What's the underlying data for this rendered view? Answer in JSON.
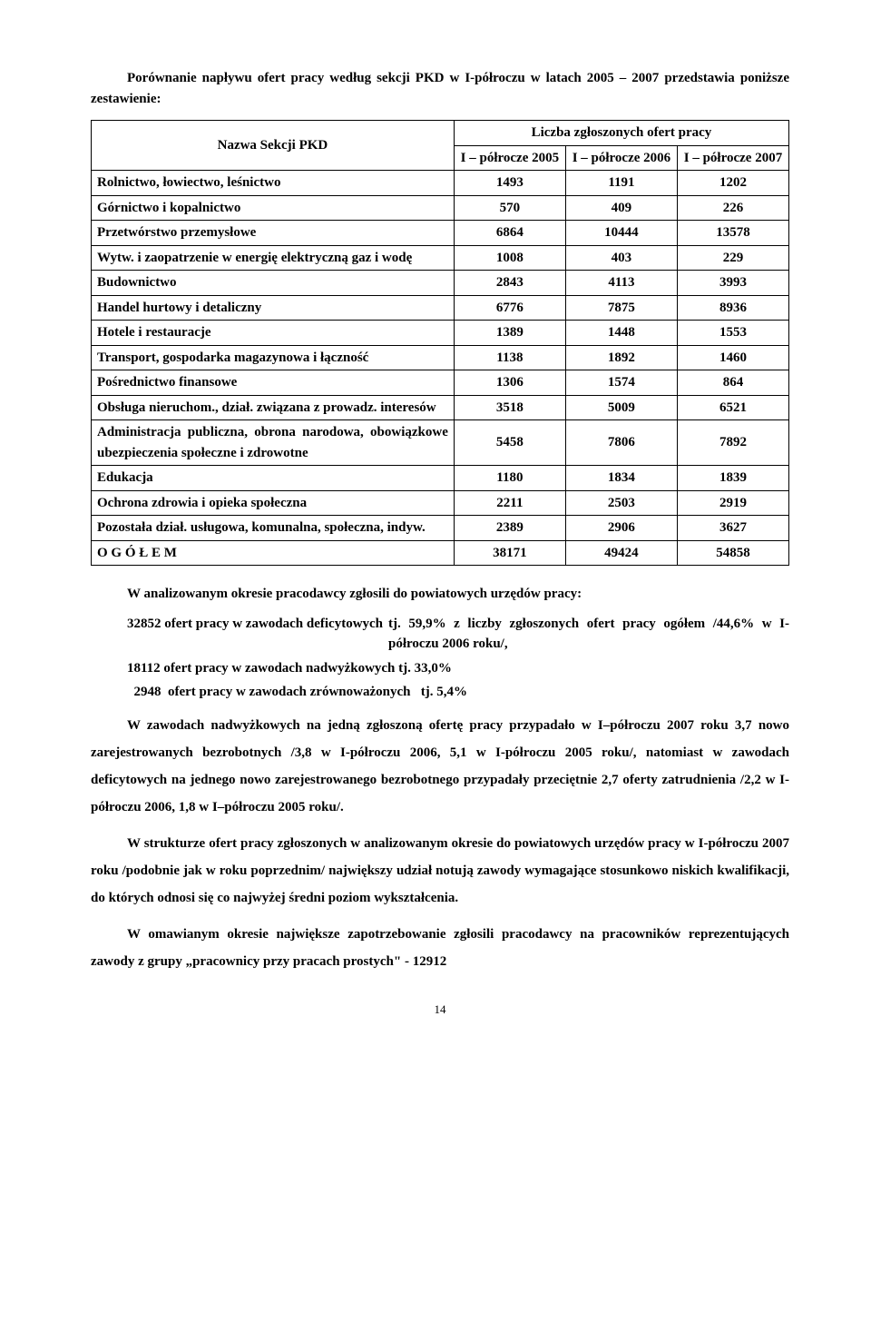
{
  "intro": "Porównanie napływu ofert pracy według sekcji PKD w I-półroczu w latach 2005 – 2007 przedstawia poniższe zestawienie:",
  "table": {
    "col_name_header": "Nazwa Sekcji PKD",
    "super_header": "Liczba zgłoszonych ofert pracy",
    "col_headers": [
      "I – półrocze 2005",
      "I – półrocze 2006",
      "I – półrocze 2007"
    ],
    "rows": [
      {
        "name": "Rolnictwo, łowiectwo, leśnictwo",
        "v": [
          "1493",
          "1191",
          "1202"
        ]
      },
      {
        "name": "Górnictwo i kopalnictwo",
        "v": [
          "570",
          "409",
          "226"
        ]
      },
      {
        "name": "Przetwórstwo przemysłowe",
        "v": [
          "6864",
          "10444",
          "13578"
        ]
      },
      {
        "name": "Wytw. i zaopatrzenie w energię elektryczną gaz i wodę",
        "v": [
          "1008",
          "403",
          "229"
        ]
      },
      {
        "name": "Budownictwo",
        "v": [
          "2843",
          "4113",
          "3993"
        ]
      },
      {
        "name": "Handel hurtowy i detaliczny",
        "v": [
          "6776",
          "7875",
          "8936"
        ]
      },
      {
        "name": "Hotele i restauracje",
        "v": [
          "1389",
          "1448",
          "1553"
        ]
      },
      {
        "name": "Transport, gospodarka magazynowa i łączność",
        "v": [
          "1138",
          "1892",
          "1460"
        ]
      },
      {
        "name": "Pośrednictwo finansowe",
        "v": [
          "1306",
          "1574",
          "864"
        ]
      },
      {
        "name": "Obsługa nieruchom., dział. związana z prowadz. interesów",
        "v": [
          "3518",
          "5009",
          "6521"
        ]
      },
      {
        "name": "Administracja publiczna, obrona narodowa, obowiązkowe ubezpieczenia społeczne i zdrowotne",
        "v": [
          "5458",
          "7806",
          "7892"
        ]
      },
      {
        "name": "Edukacja",
        "v": [
          "1180",
          "1834",
          "1839"
        ]
      },
      {
        "name": "Ochrona zdrowia i opieka społeczna",
        "v": [
          "2211",
          "2503",
          "2919"
        ]
      },
      {
        "name": "Pozostała dział. usługowa, komunalna, społeczna, indyw.",
        "v": [
          "2389",
          "2906",
          "3627"
        ]
      },
      {
        "name": "O G Ó Ł E M",
        "v": [
          "38171",
          "49424",
          "54858"
        ]
      }
    ]
  },
  "after_table": "W analizowanym okresie pracodawcy zgłosili do powiatowych urzędów pracy:",
  "deficit_left": "32852  ofert pracy w zawodach deficytowych",
  "deficit_right": "tj. 59,9% z liczby zgłoszonych ofert pracy ogółem  /44,6% w I-półroczu 2006 roku/,",
  "surplus": "18112  ofert pracy w zawodach nadwyżkowych  tj. 33,0%",
  "balanced": "  2948  ofert pracy w zawodach zrównoważonych   tj. 5,4%",
  "para1": "W zawodach nadwyżkowych na jedną zgłoszoną ofertę pracy przypadało w I–półroczu 2007 roku 3,7 nowo zarejestrowanych bezrobotnych  /3,8 w I-półroczu 2006,  5,1 w I-półroczu 2005 roku/, natomiast w zawodach deficytowych na jednego nowo zarejestrowanego bezrobotnego przypadały przeciętnie 2,7 oferty zatrudnienia  /2,2 w I-półroczu 2006,   1,8 w I–półroczu 2005 roku/.",
  "para2": "W strukturze ofert pracy zgłoszonych w analizowanym okresie do powiatowych urzędów pracy w I-półroczu 2007 roku  /podobnie jak w roku poprzednim/ największy udział notują zawody wymagające stosunkowo niskich kwalifikacji, do których odnosi się co najwyżej średni poziom wykształcenia.",
  "para3": "W omawianym okresie największe zapotrzebowanie zgłosili pracodawcy na pracowników reprezentujących zawody z grupy „pracownicy przy pracach prostych\" - 12912",
  "page_number": "14"
}
